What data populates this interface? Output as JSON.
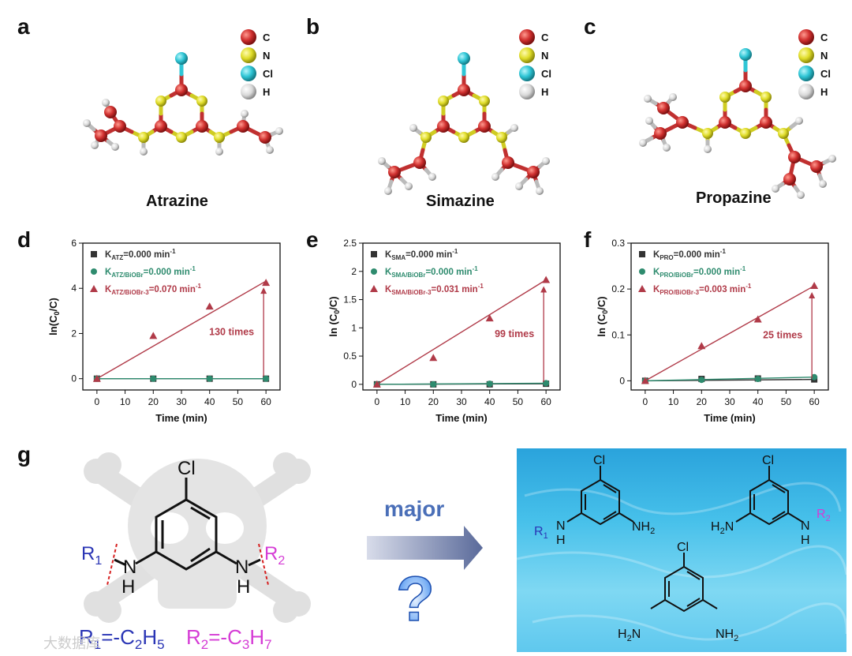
{
  "panels": {
    "a": {
      "label": "a",
      "molecule": "Atrazine"
    },
    "b": {
      "label": "b",
      "molecule": "Simazine"
    },
    "c": {
      "label": "c",
      "molecule": "Propazine"
    },
    "d": {
      "label": "d"
    },
    "e": {
      "label": "e"
    },
    "f": {
      "label": "f"
    },
    "g": {
      "label": "g"
    }
  },
  "atom_legend": [
    {
      "symbol": "C",
      "color": "#d0302f"
    },
    {
      "symbol": "N",
      "color": "#e0dd2a"
    },
    {
      "symbol": "Cl",
      "color": "#2fc6d6"
    },
    {
      "symbol": "H",
      "color": "#d9d9d9"
    }
  ],
  "chart_data": [
    {
      "type": "line",
      "panel": "d",
      "xlabel": "Time (min)",
      "ylabel": "ln(C0/C)",
      "x": [
        0,
        20,
        40,
        60
      ],
      "xticks": [
        0,
        10,
        20,
        30,
        40,
        50,
        60
      ],
      "yticks": [
        0,
        2,
        4,
        6
      ],
      "xlim": [
        -5,
        65
      ],
      "ylim": [
        -0.5,
        6
      ],
      "series": [
        {
          "name": "K_ATZ",
          "legend_main": "K",
          "legend_sub": "ATZ",
          "legend_value": "=0.000 min",
          "legend_sup": "-1",
          "marker": "square",
          "color": "#333333",
          "values": [
            0,
            0,
            0,
            0
          ]
        },
        {
          "name": "K_ATZ/BiOBr",
          "legend_main": "K",
          "legend_sub": "ATZ/BiOBr",
          "legend_value": "=0.000 min",
          "legend_sup": "-1",
          "marker": "circle",
          "color": "#2e8b6e",
          "values": [
            0,
            0,
            0,
            0
          ]
        },
        {
          "name": "K_ATZ/BiOBr-3",
          "legend_main": "K",
          "legend_sub": "ATZ/BiOBr-3",
          "legend_value": "=0.070 min",
          "legend_sup": "-1",
          "marker": "triangle",
          "color": "#b03a48",
          "values": [
            0,
            1.9,
            3.2,
            4.25
          ]
        }
      ],
      "fit_end": 4.32,
      "annotation": "130 times"
    },
    {
      "type": "line",
      "panel": "e",
      "xlabel": "Time (min)",
      "ylabel": "ln (C0/C)",
      "x": [
        0,
        20,
        40,
        60
      ],
      "xticks": [
        0,
        10,
        20,
        30,
        40,
        50,
        60
      ],
      "yticks": [
        0.0,
        0.5,
        1.0,
        1.5,
        2.0,
        2.5
      ],
      "xlim": [
        -5,
        65
      ],
      "ylim": [
        -0.1,
        2.5
      ],
      "series": [
        {
          "name": "K_SMA",
          "legend_main": "K",
          "legend_sub": "SMA",
          "legend_value": "=0.000 min",
          "legend_sup": "-1",
          "marker": "square",
          "color": "#333333",
          "values": [
            0,
            0,
            0,
            0.01
          ]
        },
        {
          "name": "K_SMA/BiOBr",
          "legend_main": "K",
          "legend_sub": "SMA/BiOBr",
          "legend_value": "=0.000 min",
          "legend_sup": "-1",
          "marker": "circle",
          "color": "#2e8b6e",
          "values": [
            0,
            0,
            0.01,
            0.02
          ]
        },
        {
          "name": "K_SMA/BiOBr-3",
          "legend_main": "K",
          "legend_sub": "SMA/BiOBr-3",
          "legend_value": "=0.031 min",
          "legend_sup": "-1",
          "marker": "triangle",
          "color": "#b03a48",
          "values": [
            0,
            0.47,
            1.17,
            1.85
          ]
        }
      ],
      "fit_end": 1.85,
      "annotation": "99 times"
    },
    {
      "type": "line",
      "panel": "f",
      "xlabel": "Time (min)",
      "ylabel": "ln (C0/C)",
      "x": [
        0,
        20,
        40,
        60
      ],
      "xticks": [
        0,
        10,
        20,
        30,
        40,
        50,
        60
      ],
      "yticks": [
        0.0,
        0.1,
        0.2,
        0.3
      ],
      "xlim": [
        -5,
        65
      ],
      "ylim": [
        -0.02,
        0.3
      ],
      "series": [
        {
          "name": "K_PRO",
          "legend_main": "K",
          "legend_sub": "PRO",
          "legend_value": "=0.000 min",
          "legend_sup": "-1",
          "marker": "square",
          "color": "#333333",
          "values": [
            0,
            0.004,
            0.005,
            0.003
          ]
        },
        {
          "name": "K_PRO/BiOBr",
          "legend_main": "K",
          "legend_sub": "PRO/BiOBr",
          "legend_value": "=0.000 min",
          "legend_sup": "-1",
          "marker": "circle",
          "color": "#2e8b6e",
          "values": [
            0,
            0.002,
            0.004,
            0.008
          ]
        },
        {
          "name": "K_PRO/BiOBr-3",
          "legend_main": "K",
          "legend_sub": "PRO/BiOBr-3",
          "legend_value": "=0.003 min",
          "legend_sup": "-1",
          "marker": "triangle",
          "color": "#b03a48",
          "values": [
            0,
            0.076,
            0.134,
            0.207
          ]
        }
      ],
      "fit_end": 0.207,
      "annotation": "25 times"
    }
  ],
  "scheme": {
    "cl": "Cl",
    "nh": "N",
    "h": "H",
    "r1": "R",
    "r1_sub": "1",
    "r2": "R",
    "r2_sub": "2",
    "r1_def": "R",
    "r1_def_sub": "1",
    "r1_def_rest": "=-C",
    "r1_def_c_sub": "2",
    "r1_def_h": "H",
    "r1_def_h_sub": "5",
    "r2_def": "R",
    "r2_def_sub": "2",
    "r2_def_rest": "=-C",
    "r2_def_c_sub": "3",
    "r2_def_h": "H",
    "r2_def_h_sub": "7",
    "major": "major",
    "question": "?",
    "nh2": "NH",
    "h2n": "H",
    "two": "2"
  },
  "watermark": "大数据库"
}
